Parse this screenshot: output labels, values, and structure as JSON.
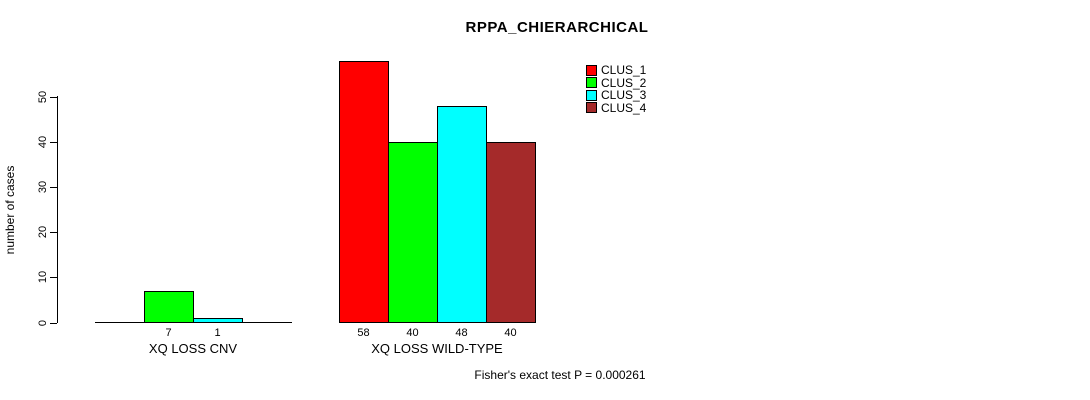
{
  "chart_data": {
    "type": "bar",
    "title": "RPPA_CHIERARCHICAL",
    "ylabel": "number of cases",
    "xlabel": "",
    "ylim": [
      0,
      58
    ],
    "yticks": [
      0,
      10,
      20,
      30,
      40,
      50
    ],
    "grid": false,
    "legend_position": "top-right",
    "categories": [
      "XQ LOSS CNV",
      "XQ LOSS WILD-TYPE"
    ],
    "series": [
      {
        "name": "CLUS_1",
        "color": "#FF0000",
        "values": [
          0,
          58
        ]
      },
      {
        "name": "CLUS_2",
        "color": "#00FF00",
        "values": [
          7,
          40
        ]
      },
      {
        "name": "CLUS_3",
        "color": "#00FFFF",
        "values": [
          1,
          48
        ]
      },
      {
        "name": "CLUS_4",
        "color": "#A52A2A",
        "values": [
          0,
          40
        ]
      }
    ],
    "bar_value_labels": {
      "group_1": [
        "7",
        "1"
      ],
      "group_2": [
        "58",
        "40",
        "48",
        "40"
      ]
    },
    "annotation": "Fisher's exact test P = 0.000261"
  },
  "colors": {
    "background": "#FFFFFF",
    "axis": "#000000",
    "text": "#000000"
  }
}
